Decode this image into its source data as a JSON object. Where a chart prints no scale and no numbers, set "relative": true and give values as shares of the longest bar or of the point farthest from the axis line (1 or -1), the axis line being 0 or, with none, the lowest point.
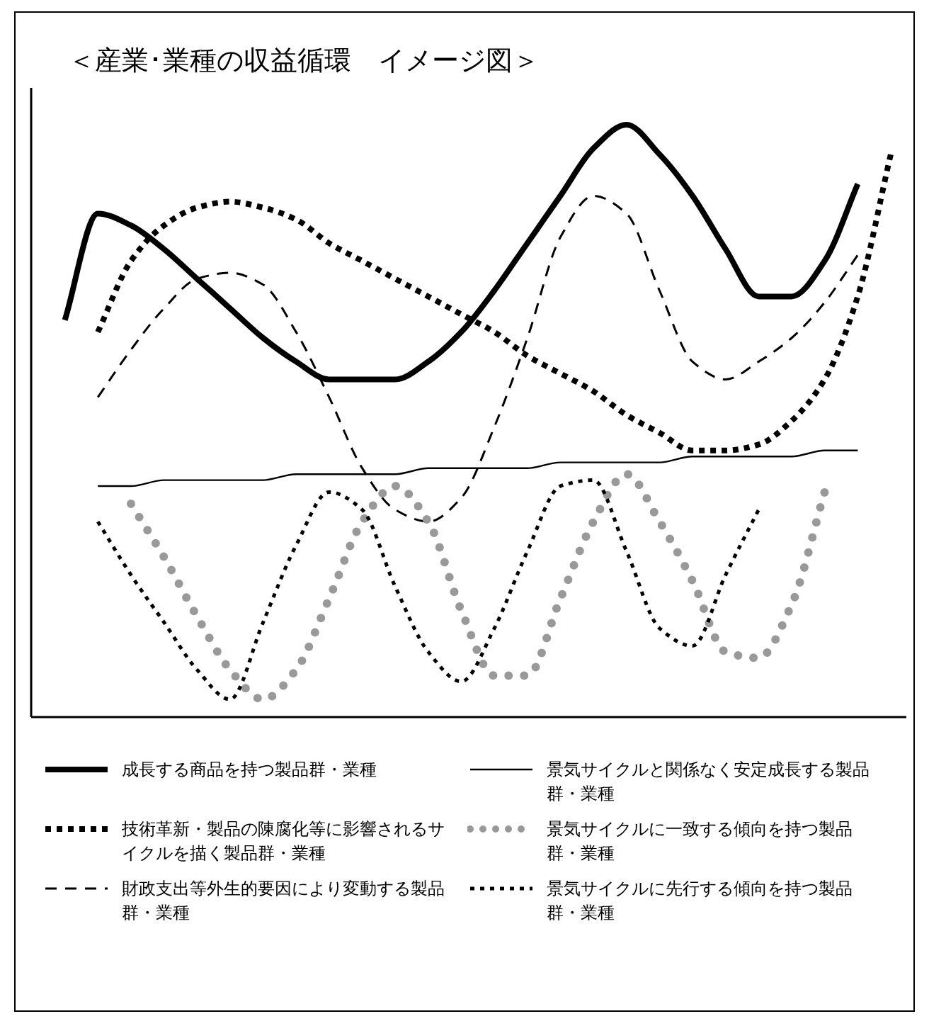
{
  "chart_data": {
    "type": "line",
    "relative": true,
    "legend": "bottom",
    "title": "＜産業･業種の収益循環　イメージ図＞",
    "categories": [
      null,
      null,
      null,
      null,
      null,
      null,
      null,
      null,
      null,
      null,
      null,
      null,
      null,
      null,
      null,
      null,
      null,
      null,
      null,
      null,
      null,
      null,
      null,
      null,
      null,
      null
    ],
    "series": [
      {
        "name": "成長する商品を持つ製品群・業種",
        "color": "#000000",
        "line_style": "solid",
        "values": [
          0.67,
          0.85,
          0.83,
          0.79,
          0.74,
          0.69,
          0.64,
          0.6,
          0.57,
          0.57,
          0.57,
          0.6,
          0.65,
          0.72,
          0.8,
          0.88,
          0.96,
          1.0,
          0.95,
          0.88,
          0.79,
          0.71,
          0.71,
          0.77,
          0.9,
          null
        ]
      },
      {
        "name": "技術革新・製品の陳腐化等に影響されるサイクルを描く製品群・業種",
        "color": "#000000",
        "line_style": "dotted",
        "values": [
          null,
          0.65,
          0.77,
          0.83,
          0.86,
          0.87,
          0.86,
          0.84,
          0.8,
          0.77,
          0.74,
          0.71,
          0.68,
          0.65,
          0.61,
          0.58,
          0.55,
          0.51,
          0.48,
          0.45,
          0.45,
          0.46,
          0.5,
          0.57,
          0.71,
          0.95
        ]
      },
      {
        "name": "財政支出等外生的要因により変動する製品群・業種",
        "color": "#000000",
        "line_style": "dashed",
        "values": [
          null,
          0.54,
          0.62,
          0.69,
          0.74,
          0.75,
          0.73,
          0.65,
          0.54,
          0.42,
          0.35,
          0.33,
          0.37,
          0.49,
          0.64,
          0.81,
          0.88,
          0.85,
          0.72,
          0.6,
          0.57,
          0.6,
          0.64,
          0.7,
          0.78,
          null
        ]
      },
      {
        "name": "景気サイクルと関係なく安定成長する製品群・業種",
        "color": "#000000",
        "line_style": "solid",
        "values": [
          null,
          0.39,
          0.39,
          0.4,
          0.4,
          0.4,
          0.4,
          0.41,
          0.41,
          0.41,
          0.41,
          0.42,
          0.42,
          0.42,
          0.42,
          0.43,
          0.43,
          0.43,
          0.43,
          0.44,
          0.44,
          0.44,
          0.44,
          0.45,
          0.45,
          null
        ]
      },
      {
        "name": "景気サイクルに一致する傾向を持つ製品群・業種",
        "color": "#999999",
        "line_style": "dotted",
        "values": [
          null,
          null,
          0.36,
          0.27,
          0.17,
          0.08,
          0.03,
          0.08,
          0.2,
          0.33,
          0.39,
          0.33,
          0.18,
          0.07,
          0.07,
          0.2,
          0.33,
          0.41,
          0.33,
          0.23,
          0.11,
          0.1,
          0.19,
          0.38,
          null,
          null
        ]
      },
      {
        "name": "景気サイクルに先行する傾向を持つ製品群・業種",
        "color": "#000000",
        "line_style": "dotted",
        "values": [
          null,
          0.33,
          0.24,
          0.16,
          0.08,
          0.03,
          0.16,
          0.29,
          0.38,
          0.35,
          0.22,
          0.11,
          0.06,
          0.15,
          0.28,
          0.39,
          0.4,
          0.28,
          0.15,
          0.12,
          0.24,
          0.35,
          null,
          null,
          null,
          null
        ]
      }
    ]
  }
}
